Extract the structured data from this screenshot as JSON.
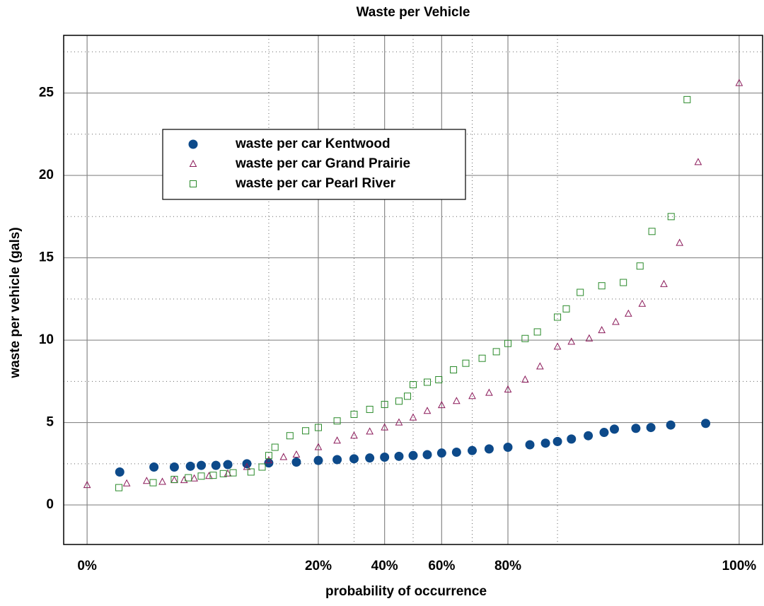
{
  "chart_data": {
    "type": "scatter",
    "title": "Waste per Vehicle",
    "x_label": "probability of occurrence",
    "y_label": "waste per vehicle (gals)",
    "xscale": "probit",
    "xlim": [
      0.096,
      99.904
    ],
    "xticks": [
      {
        "value": 0.19,
        "label": "0%"
      },
      {
        "value": 20,
        "label": "20%"
      },
      {
        "value": 40,
        "label": "40%"
      },
      {
        "value": 60,
        "label": "60%"
      },
      {
        "value": 80,
        "label": "80%"
      },
      {
        "value": 99.81,
        "label": "100%"
      }
    ],
    "xminorticks": [
      10,
      30,
      50,
      70,
      90
    ],
    "ylim": [
      -2.4,
      28.5
    ],
    "yticks": [
      0,
      5,
      10,
      15,
      20,
      25
    ],
    "yminorticks": [
      2.5,
      7.5,
      12.5,
      17.5,
      22.5,
      27.5
    ],
    "grid": true,
    "legend": "upper left",
    "series": [
      {
        "name": "waste per car Kentwood",
        "color": "#0d4a8a",
        "marker": "circle",
        "x": [
          0.46,
          1.07,
          1.7,
          2.4,
          3,
          4,
          5,
          7,
          10,
          15,
          20,
          25,
          30,
          35,
          40,
          45,
          50,
          55,
          60,
          65,
          70,
          75,
          80,
          85,
          88,
          90,
          92,
          94,
          95.5,
          96.3,
          97.6,
          98.26,
          98.89,
          99.53
        ],
        "values": [
          2.0,
          2.3,
          2.3,
          2.35,
          2.4,
          2.4,
          2.45,
          2.5,
          2.55,
          2.6,
          2.7,
          2.75,
          2.8,
          2.85,
          2.9,
          2.95,
          3.0,
          3.05,
          3.15,
          3.2,
          3.3,
          3.4,
          3.5,
          3.65,
          3.75,
          3.85,
          4.0,
          4.2,
          4.4,
          4.6,
          4.65,
          4.7,
          4.85,
          4.95
        ]
      },
      {
        "name": "waste per car Grand Prairie",
        "color": "#8b1a5a",
        "marker": "triangle",
        "x": [
          0.19,
          0.55,
          0.9,
          1.3,
          1.7,
          2.1,
          2.6,
          3.5,
          5,
          7,
          10,
          12.5,
          15,
          20,
          25,
          30,
          35,
          40,
          45,
          50,
          55,
          60,
          65,
          70,
          75,
          80,
          84,
          87,
          90,
          92,
          94.1,
          95.3,
          96.4,
          97.2,
          97.9,
          98.7,
          99.1,
          99.43,
          99.81
        ],
        "values": [
          1.2,
          1.3,
          1.45,
          1.4,
          1.5,
          1.5,
          1.6,
          1.75,
          1.9,
          2.3,
          2.7,
          2.9,
          3.05,
          3.5,
          3.9,
          4.2,
          4.45,
          4.7,
          5.0,
          5.3,
          5.7,
          6.05,
          6.3,
          6.6,
          6.8,
          7.0,
          7.6,
          8.4,
          9.6,
          9.9,
          10.1,
          10.6,
          11.1,
          11.6,
          12.2,
          13.4,
          15.9,
          20.8,
          25.6
        ]
      },
      {
        "name": "waste per car Pearl River",
        "color": "#2a8a2a",
        "marker": "square",
        "x": [
          0.45,
          1.05,
          1.7,
          2.3,
          3,
          3.8,
          4.6,
          5.5,
          7.5,
          9,
          10,
          11,
          13.7,
          17,
          20,
          25,
          30,
          35,
          40,
          45,
          48,
          50,
          55,
          59,
          64,
          68,
          73,
          77,
          80,
          84,
          86.5,
          90,
          91.3,
          93.1,
          95.3,
          96.9,
          97.8,
          98.3,
          98.9,
          99.25
        ],
        "values": [
          1.05,
          1.35,
          1.55,
          1.65,
          1.75,
          1.8,
          1.9,
          1.95,
          2.0,
          2.3,
          3.0,
          3.5,
          4.2,
          4.5,
          4.7,
          5.1,
          5.5,
          5.8,
          6.1,
          6.3,
          6.6,
          7.3,
          7.45,
          7.6,
          8.2,
          8.6,
          8.9,
          9.3,
          9.8,
          10.1,
          10.5,
          11.4,
          11.9,
          12.9,
          13.3,
          13.5,
          14.5,
          16.6,
          17.5,
          24.6
        ]
      }
    ]
  }
}
